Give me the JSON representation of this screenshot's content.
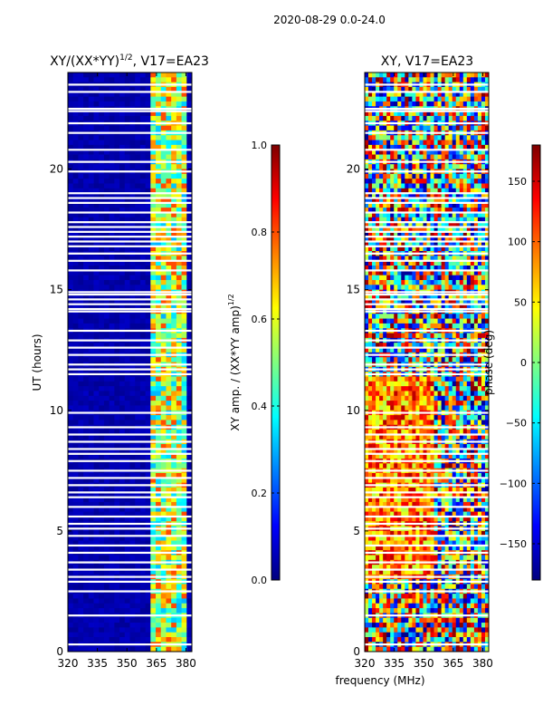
{
  "figure_title": "2020-08-29 0.0-24.0",
  "xlabel_shared": "frequency (MHz)",
  "chart_data": [
    {
      "type": "heatmap",
      "title_main": "XY/(XX*YY)",
      "title_exp": "1/2",
      "title_rest": ", V17=EA23",
      "ylabel": "UT (hours)",
      "xlim": [
        320,
        383
      ],
      "ylim": [
        0,
        24
      ],
      "xticks": [
        "320",
        "335",
        "350",
        "365",
        "380"
      ],
      "yticks": [
        "0",
        "5",
        "10",
        "15",
        "20"
      ],
      "colorbar": {
        "label_main": "XY amp. / (XX*YY amp)",
        "label_exp": "1/2",
        "range": [
          0.0,
          1.0
        ],
        "ticks": [
          "0.0",
          "0.2",
          "0.4",
          "0.6",
          "0.8",
          "1.0"
        ],
        "colormap": "jet"
      },
      "bright_band_mhz": [
        361,
        380
      ]
    },
    {
      "type": "heatmap",
      "title": "XY, V17=EA23",
      "ylabel": "",
      "xlim": [
        320,
        383
      ],
      "ylim": [
        0,
        24
      ],
      "xticks": [
        "320",
        "335",
        "350",
        "365",
        "380"
      ],
      "yticks": [
        "0",
        "5",
        "10",
        "15",
        "20"
      ],
      "colorbar": {
        "label": "phase (deg)",
        "range": [
          -180,
          180
        ],
        "ticks": [
          "−150",
          "−100",
          "−50",
          "0",
          "50",
          "100",
          "150"
        ],
        "colormap": "jet"
      }
    }
  ],
  "gap_rows_hours": [
    0.3,
    1.5,
    2.5,
    2.9,
    3.1,
    3.4,
    3.7,
    4.1,
    4.4,
    4.8,
    5.1,
    5.3,
    5.6,
    6.0,
    6.4,
    6.6,
    6.9,
    7.2,
    7.5,
    7.9,
    8.2,
    8.4,
    8.7,
    9.0,
    9.3,
    9.9,
    11.5,
    11.7,
    11.9,
    12.3,
    12.6,
    12.9,
    13.3,
    14.1,
    14.2,
    14.4,
    14.6,
    14.8,
    14.9,
    15.8,
    16.2,
    16.5,
    16.8,
    17.0,
    17.2,
    17.4,
    17.6,
    17.8,
    18.2,
    18.6,
    18.8,
    19.0,
    19.9,
    20.3,
    20.8,
    21.5,
    21.9,
    22.4,
    22.5,
    23.2,
    23.5
  ]
}
